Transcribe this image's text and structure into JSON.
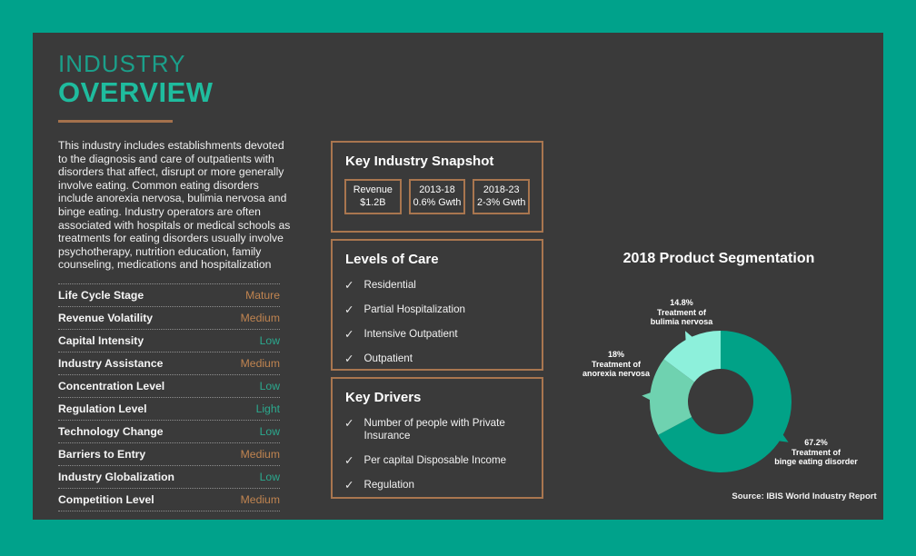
{
  "colors": {
    "background": "#00a28b",
    "panel": "#3a3a3a",
    "title_teal_light": "#1b9f8a",
    "title_teal_bold": "#1fbc9e",
    "box_border_orange": "#a9764f",
    "value_orange": "#c08450",
    "value_teal": "#2ba98e"
  },
  "header": {
    "title_line1": "INDUSTRY",
    "title_line2": "OVERVIEW"
  },
  "intro": "This industry includes establishments devoted to the diagnosis and care of outpatients with disorders that affect, disrupt or more generally involve eating. Common eating disorders include anorexia nervosa, bulimia nervosa and binge eating. Industry operators are often associated with hospitals or medical schools as treatments for eating disorders usually involve psychotherapy, nutrition education, family counseling, medications and hospitalization",
  "attributes": {
    "rows": [
      {
        "label": "Life Cycle Stage",
        "value": "Mature",
        "tone": "orange"
      },
      {
        "label": "Revenue Volatility",
        "value": "Medium",
        "tone": "orange"
      },
      {
        "label": "Capital Intensity",
        "value": "Low",
        "tone": "teal"
      },
      {
        "label": "Industry Assistance",
        "value": "Medium",
        "tone": "orange"
      },
      {
        "label": "Concentration Level",
        "value": "Low",
        "tone": "teal"
      },
      {
        "label": "Regulation Level",
        "value": "Light",
        "tone": "teal"
      },
      {
        "label": "Technology Change",
        "value": "Low",
        "tone": "teal"
      },
      {
        "label": "Barriers to Entry",
        "value": "Medium",
        "tone": "orange"
      },
      {
        "label": "Industry Globalization",
        "value": "Low",
        "tone": "teal"
      },
      {
        "label": "Competition Level",
        "value": "Medium",
        "tone": "orange"
      }
    ]
  },
  "snapshot": {
    "title": "Key Industry Snapshot",
    "stats": [
      {
        "line1": "Revenue",
        "line2": "$1.2B"
      },
      {
        "line1": "2013-18",
        "line2": "0.6% Gwth"
      },
      {
        "line1": "2018-23",
        "line2": "2-3% Gwth"
      }
    ]
  },
  "levels_of_care": {
    "title": "Levels of Care",
    "check_icon": "✓",
    "items": [
      "Residential",
      "Partial Hospitalization",
      "Intensive Outpatient",
      "Outpatient"
    ]
  },
  "key_drivers": {
    "title": "Key Drivers",
    "check_icon": "✓",
    "items": [
      "Number of people with Private Insurance",
      "Per capital Disposable Income",
      "Regulation"
    ]
  },
  "chart_data": {
    "type": "pie",
    "subtype": "donut",
    "title": "2018 Product Segmentation",
    "source": "Source: IBIS World Industry Report",
    "start_angle_deg": 0,
    "direction": "clockwise",
    "legend_position": "callouts",
    "segments": [
      {
        "name": "Treatment of binge eating disorder",
        "pct": 67.2,
        "color": "#01a287",
        "callout_pct": "67.2%",
        "callout_line1": "Treatment of",
        "callout_line2": "binge eating disorder"
      },
      {
        "name": "Treatment of anorexia nervosa",
        "pct": 18,
        "color": "#6fd2b0",
        "callout_pct": "18%",
        "callout_line1": "Treatment of",
        "callout_line2": "anorexia nervosa"
      },
      {
        "name": "Treatment of bulimia nervosa",
        "pct": 14.8,
        "color": "#8df0db",
        "callout_pct": "14.8%",
        "callout_line1": "Treatment of",
        "callout_line2": "bulimia nervosa"
      }
    ]
  }
}
